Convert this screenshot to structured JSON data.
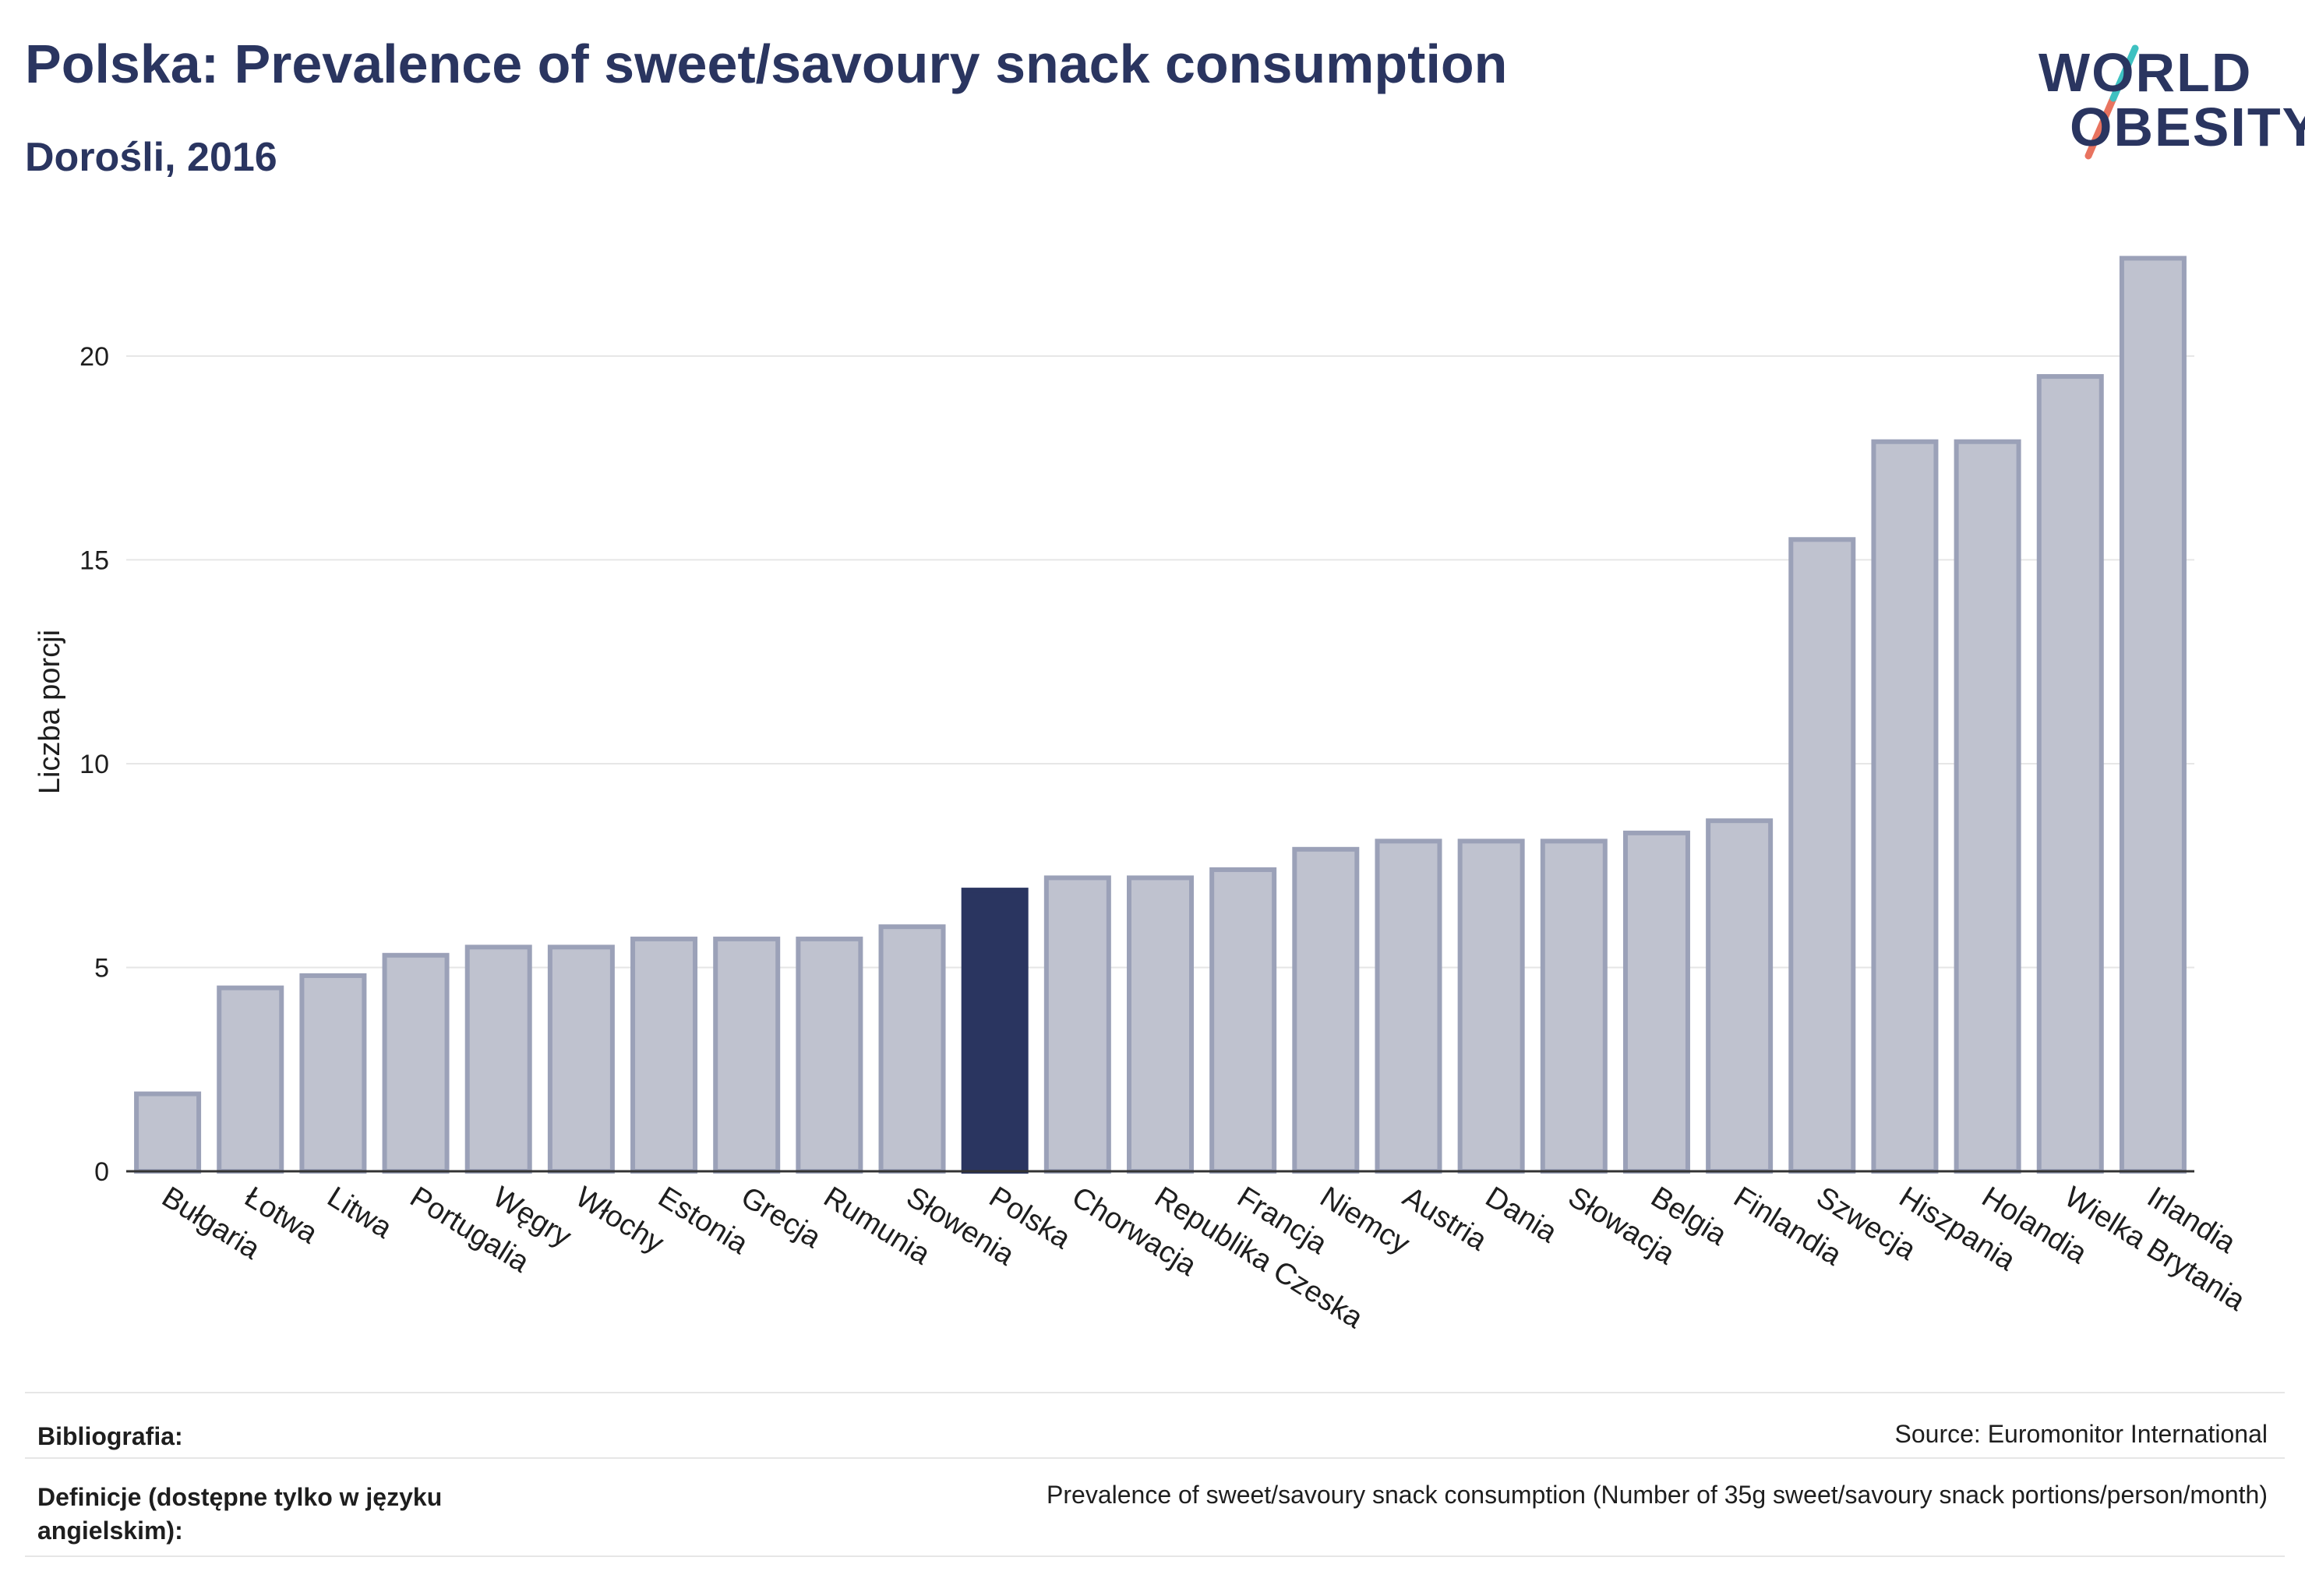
{
  "header": {
    "title": "Polska: Prevalence of sweet/savoury snack consumption",
    "subtitle": "Dorośli, 2016"
  },
  "logo": {
    "line1": "WORLD",
    "line2": "OBESITY"
  },
  "colors": {
    "highlight": "#2a3560",
    "bar_fill": "#bfc2cf",
    "bar_stroke": "#9ba1b8",
    "title": "#2a3560",
    "logo_teal": "#3ec1c1",
    "logo_coral": "#e8735f"
  },
  "chart_data": {
    "type": "bar",
    "ylabel": "Liczba porcji",
    "xlabel": "",
    "ylim": [
      0,
      23
    ],
    "yticks": [
      0,
      5,
      10,
      15,
      20
    ],
    "highlight": "Polska",
    "grid": true,
    "categories": [
      "Bułgaria",
      "Łotwa",
      "Litwa",
      "Portugalia",
      "Węgry",
      "Włochy",
      "Estonia",
      "Grecja",
      "Rumunia",
      "Słowenia",
      "Polska",
      "Chorwacja",
      "Republika Czeska",
      "Francja",
      "Niemcy",
      "Austria",
      "Dania",
      "Słowacja",
      "Belgia",
      "Finlandia",
      "Szwecja",
      "Hiszpania",
      "Holandia",
      "Wielka Brytania",
      "Irlandia"
    ],
    "values": [
      1.9,
      4.5,
      4.8,
      5.3,
      5.5,
      5.5,
      5.7,
      5.7,
      5.7,
      6.0,
      6.9,
      7.2,
      7.2,
      7.4,
      7.9,
      8.1,
      8.1,
      8.1,
      8.3,
      8.6,
      15.5,
      17.9,
      17.9,
      19.5,
      22.4
    ]
  },
  "footer": {
    "bibliography_label": "Bibliografia:",
    "bibliography_value": "Source: Euromonitor International",
    "definitions_label": "Definicje (dostępne tylko w języku angielskim):",
    "definitions_value": "Prevalence of sweet/savoury snack consumption (Number of 35g sweet/savoury snack portions/person/month)"
  }
}
